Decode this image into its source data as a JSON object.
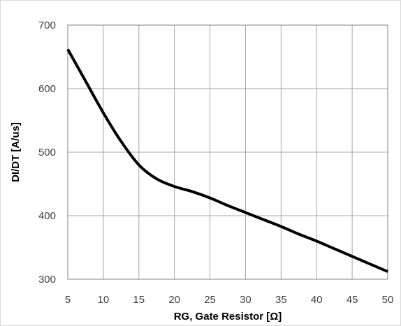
{
  "chart_data": {
    "type": "line",
    "title": "",
    "xlabel": "RG, Gate Resistor [Ω]",
    "ylabel": "DI/DT [A/us]",
    "xlim": [
      5,
      50
    ],
    "ylim": [
      300,
      700
    ],
    "xticks": [
      5,
      10,
      15,
      20,
      25,
      30,
      35,
      40,
      45,
      50
    ],
    "yticks": [
      300,
      400,
      500,
      600,
      700
    ],
    "grid": true,
    "legend": "none",
    "series": [
      {
        "x": [
          5,
          7.5,
          10,
          12.5,
          15,
          17.5,
          20,
          22.5,
          25,
          27.5,
          30,
          32.5,
          35,
          37.5,
          40,
          42.5,
          45,
          47.5,
          50
        ],
        "y": [
          662,
          612,
          562,
          517,
          480,
          458,
          446,
          438,
          428,
          416,
          405,
          394,
          383,
          371,
          360,
          348,
          336,
          324,
          312
        ],
        "color": "#000000"
      }
    ]
  }
}
